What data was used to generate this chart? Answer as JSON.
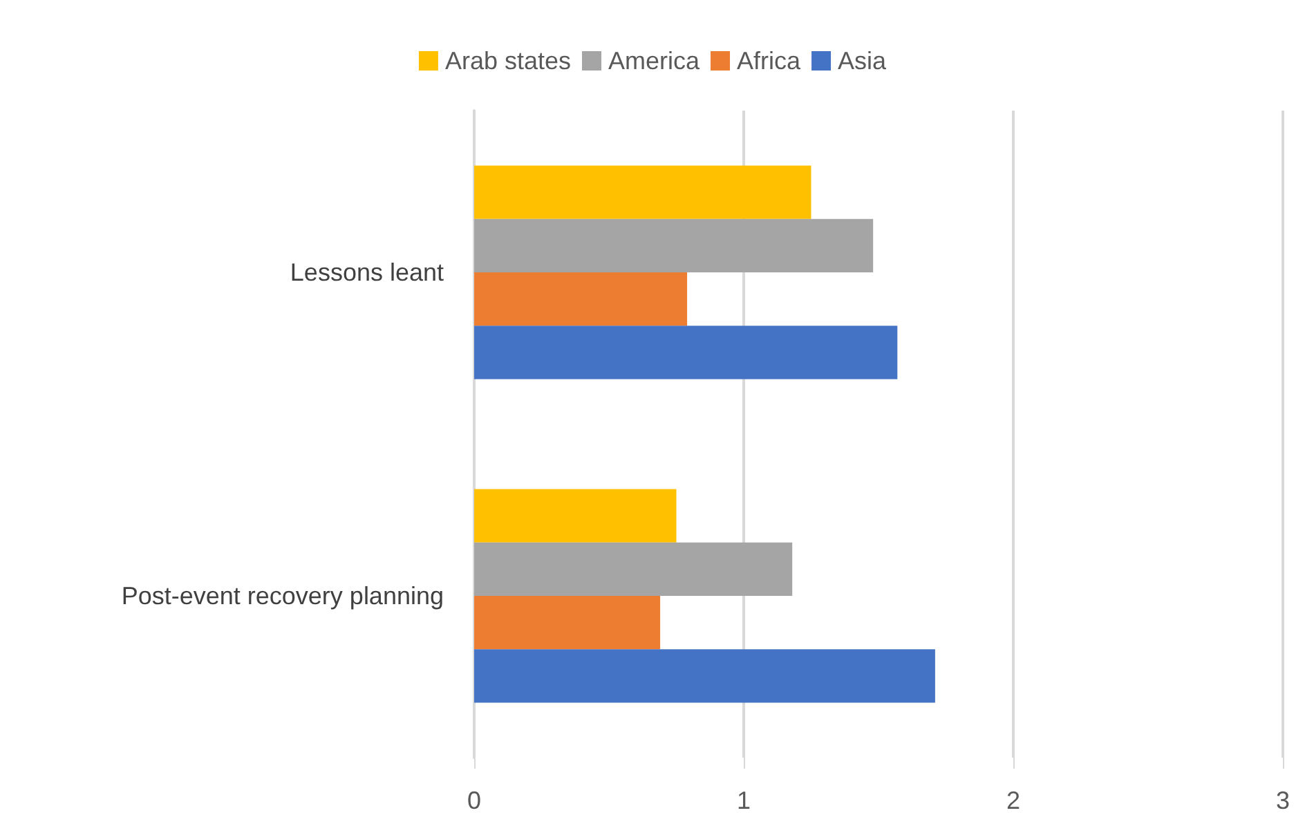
{
  "chart_data": {
    "type": "bar",
    "orientation": "horizontal",
    "categories": [
      "Lessons leant",
      "Post-event recovery planning"
    ],
    "series": [
      {
        "name": "Arab states",
        "color": "#ffc000",
        "values": [
          1.25,
          0.75
        ]
      },
      {
        "name": "America",
        "color": "#a5a5a5",
        "values": [
          1.48,
          1.18
        ]
      },
      {
        "name": "Africa",
        "color": "#ed7d31",
        "values": [
          0.79,
          0.69
        ]
      },
      {
        "name": "Asia",
        "color": "#4472c4",
        "values": [
          1.57,
          1.71
        ]
      }
    ],
    "xlim": [
      0,
      3
    ],
    "xticks": [
      0,
      1,
      2,
      3
    ],
    "grid": "x",
    "legend": "top"
  }
}
